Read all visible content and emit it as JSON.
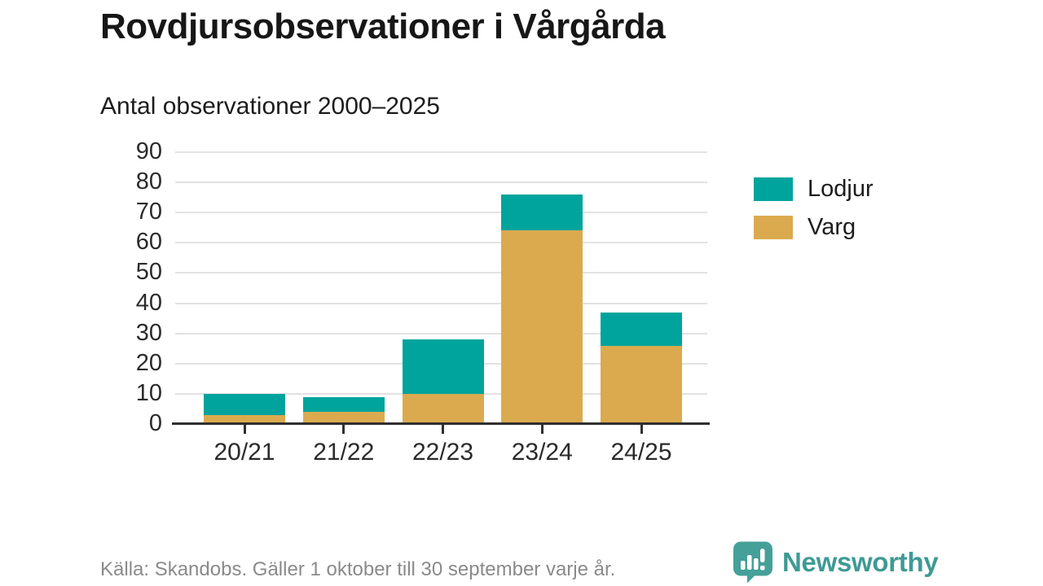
{
  "title": "Rovdjursobservationer i Vårgårda",
  "subtitle": "Antal observationer 2000–2025",
  "source": "Källa: Skandobs. Gäller 1 oktober till 30 september varje år.",
  "branding": {
    "name": "Newsworthy",
    "icon": "newsworthy-speech-bubble-barchart-icon",
    "color": "#3f9a94",
    "icon_color": "#44a099"
  },
  "colors": {
    "lodjur": "#00a49c",
    "varg": "#dbaa4f",
    "gridline": "#e2e2e2",
    "axis": "#2f2f2f",
    "title_text": "#171717",
    "label_text": "#2b2b2b",
    "source_text": "#8a8a8a"
  },
  "chart_data": {
    "type": "bar",
    "stacked": true,
    "title": "Rovdjursobservationer i Vårgårda",
    "subtitle": "Antal observationer 2000–2025",
    "categories": [
      "20/21",
      "21/22",
      "22/23",
      "23/24",
      "24/25"
    ],
    "series": [
      {
        "name": "Varg",
        "color_key": "varg",
        "values": [
          3,
          4,
          10,
          64,
          26
        ]
      },
      {
        "name": "Lodjur",
        "color_key": "lodjur",
        "values": [
          7,
          5,
          18,
          12,
          11
        ]
      }
    ],
    "totals": [
      10,
      9,
      28,
      76,
      37
    ],
    "xlabel": "",
    "ylabel": "",
    "ylim": [
      0,
      90
    ],
    "yticks": [
      0,
      10,
      20,
      30,
      40,
      50,
      60,
      70,
      80,
      90
    ],
    "grid": true,
    "legend": [
      {
        "label": "Lodjur",
        "color_key": "lodjur"
      },
      {
        "label": "Varg",
        "color_key": "varg"
      }
    ],
    "legend_position": "right"
  }
}
